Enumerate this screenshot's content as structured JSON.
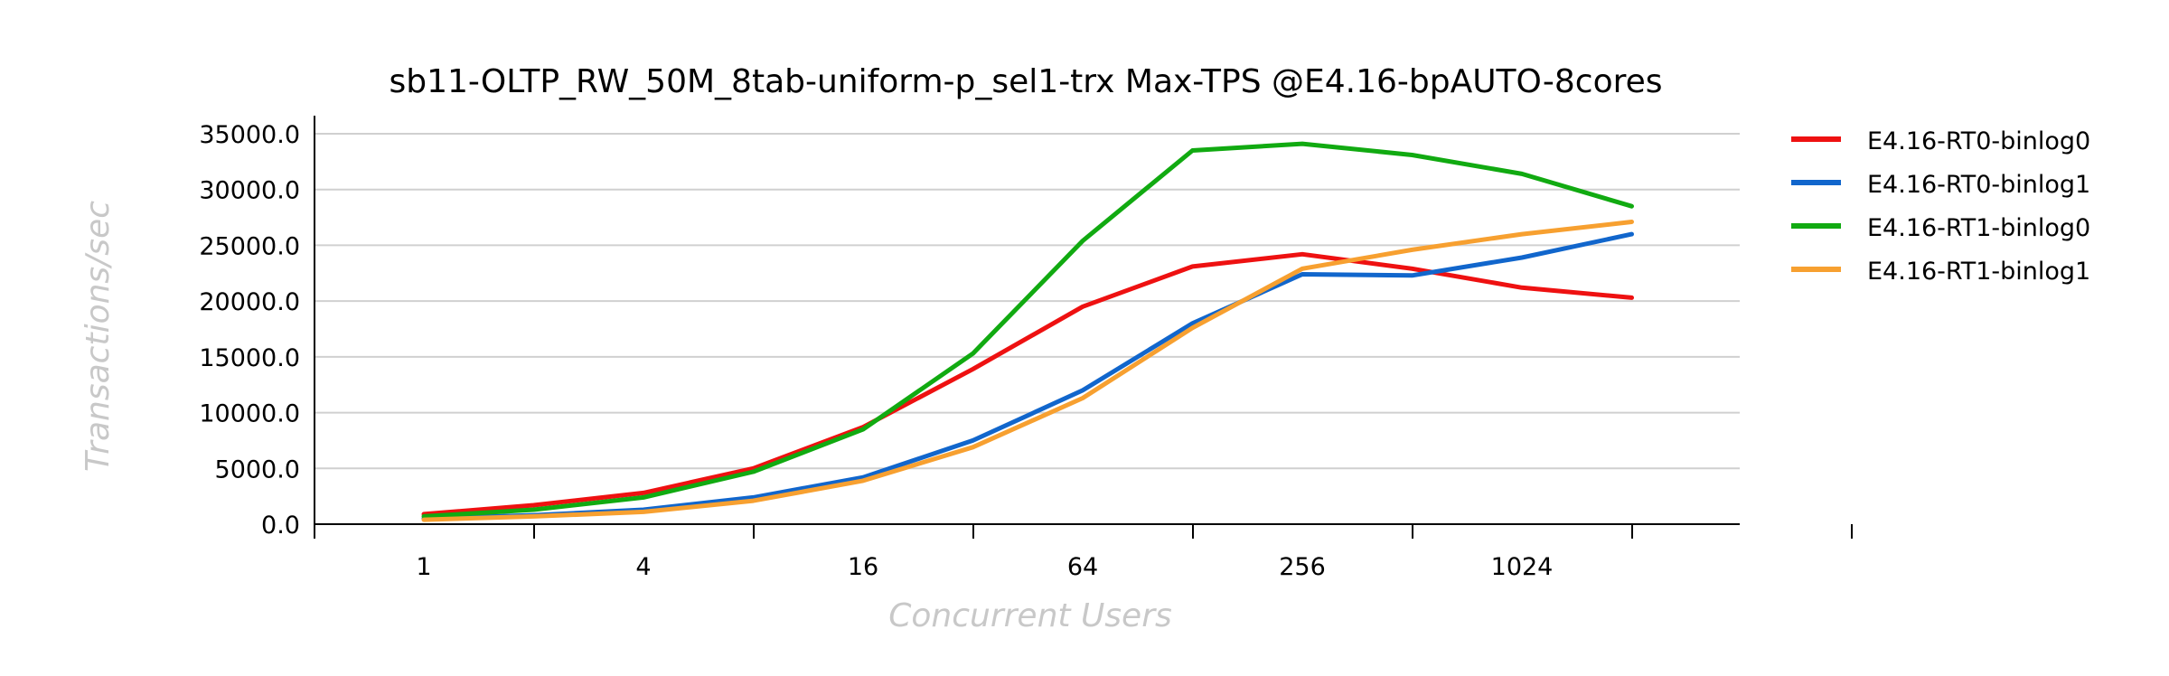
{
  "chart_data": {
    "type": "line",
    "title": "sb11-OLTP_RW_50M_8tab-uniform-p_sel1-trx Max-TPS @E4.16-bpAUTO-8cores",
    "xlabel": "Concurrent Users",
    "ylabel": "Transactions/sec",
    "x": [
      1,
      2,
      4,
      8,
      16,
      32,
      64,
      128,
      256,
      512,
      1024,
      2048
    ],
    "x_scale": "log2",
    "x_tick_labels": [
      "1",
      "4",
      "16",
      "64",
      "256",
      "1024"
    ],
    "x_tick_values": [
      1,
      4,
      16,
      64,
      256,
      1024
    ],
    "ylim": [
      0,
      35000
    ],
    "y_ticks": [
      0,
      5000,
      10000,
      15000,
      20000,
      25000,
      30000,
      35000
    ],
    "y_tick_labels": [
      "0.0",
      "5000.0",
      "10000.0",
      "15000.0",
      "20000.0",
      "25000.0",
      "30000.0",
      "35000.0"
    ],
    "grid": true,
    "legend_position": "right",
    "series": [
      {
        "name": "E4.16-RT0-binlog0",
        "color": "#ee1111",
        "values": [
          900,
          1700,
          2800,
          5000,
          8700,
          13900,
          19500,
          23100,
          24200,
          22900,
          21200,
          20300
        ]
      },
      {
        "name": "E4.16-RT0-binlog1",
        "color": "#1166cc",
        "values": [
          500,
          800,
          1300,
          2400,
          4200,
          7500,
          12000,
          18000,
          22400,
          22300,
          23900,
          26000
        ]
      },
      {
        "name": "E4.16-RT1-binlog0",
        "color": "#11aa11",
        "values": [
          700,
          1300,
          2400,
          4700,
          8500,
          15300,
          25400,
          33500,
          34100,
          33100,
          31400,
          28500
        ]
      },
      {
        "name": "E4.16-RT1-binlog1",
        "color": "#f7a030",
        "values": [
          400,
          700,
          1100,
          2100,
          3900,
          6900,
          11300,
          17600,
          22900,
          24600,
          26000,
          27100
        ]
      }
    ]
  }
}
